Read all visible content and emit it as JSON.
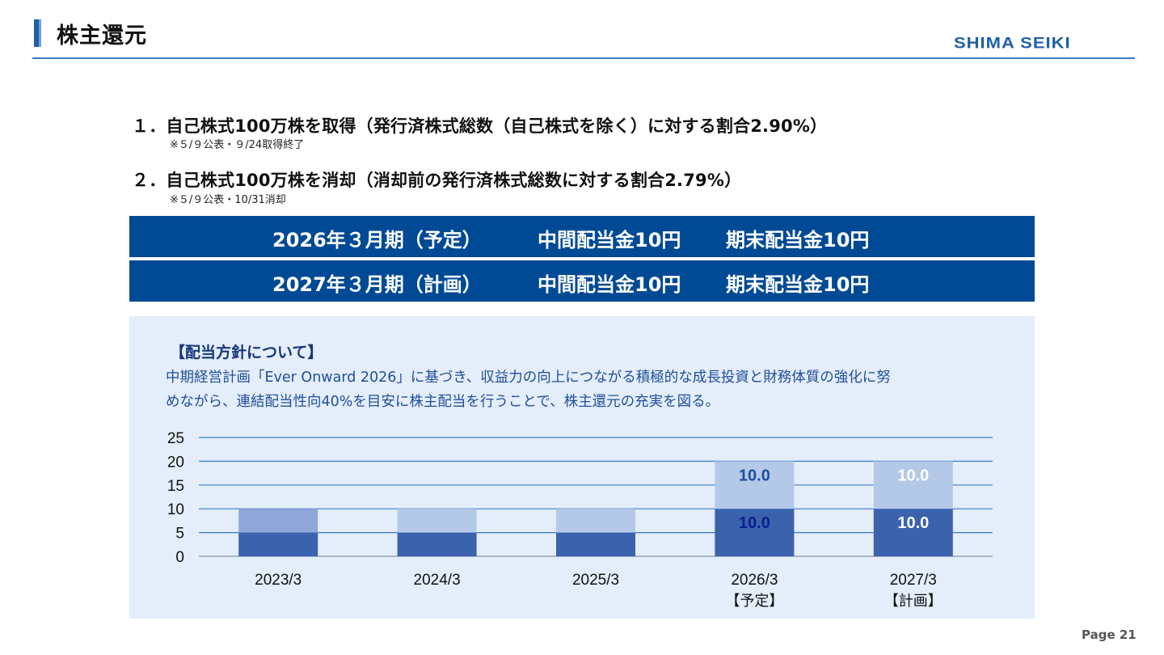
{
  "header": {
    "title": "株主還元",
    "logo": "SHIMA SEIKI"
  },
  "items": [
    {
      "text": "１．自己株式100万株を取得（発行済株式総数（自己株式を除く）に対する割合2.90%）",
      "note": "※５/９公表・９/24取得終了"
    },
    {
      "text": "２．自己株式100万株を消却（消却前の発行済株式総数に対する割合2.79%）",
      "note": "※５/９公表・10/31消却"
    }
  ],
  "dividend_bands": [
    {
      "period": "2026年３月期（予定）",
      "interim": "中間配当金10円",
      "yearend": "期末配当金10円"
    },
    {
      "period": "2027年３月期（計画）",
      "interim": "中間配当金10円",
      "yearend": "期末配当金10円"
    }
  ],
  "policy": {
    "heading": "【配当方針について】",
    "line1": "中期経営計画「Ever Onward 2026」に基づき、収益力の向上につながる積極的な成長投資と財務体質の強化に努",
    "line2": "めながら、連結配当性向40%を目安に株主配当を行うことで、株主還元の充実を図る。"
  },
  "chart_data": {
    "type": "bar",
    "stacked": true,
    "categories": [
      "2023/3",
      "2024/3",
      "2025/3",
      "2026/3",
      "2027/3"
    ],
    "category_sublabels": [
      "",
      "",
      "",
      "【予定】",
      "【計画】"
    ],
    "series": [
      {
        "values": [
          5,
          5,
          5,
          10,
          10
        ],
        "data_labels": [
          "",
          "",
          "",
          "10.0",
          "10.0"
        ],
        "color": "#3a62ad"
      },
      {
        "values": [
          5,
          5,
          5,
          10,
          10
        ],
        "data_labels": [
          "",
          "",
          "",
          "10.0",
          "10.0"
        ],
        "color": "#b4c8e8"
      }
    ],
    "first_bar_top_color": "#8ea7d8",
    "label_colors": {
      "2026/3": {
        "lower": "#0b1f8f",
        "upper": "#1f4fa0"
      },
      "2027/3": {
        "lower": "#ffffff",
        "upper": "#ffffff"
      }
    },
    "yticks": [
      0,
      5,
      10,
      15,
      20,
      25
    ],
    "ylim": [
      0,
      25
    ],
    "grid": true,
    "gridline_color": "#3a7cc2"
  },
  "footer": {
    "page": "Page 21"
  }
}
